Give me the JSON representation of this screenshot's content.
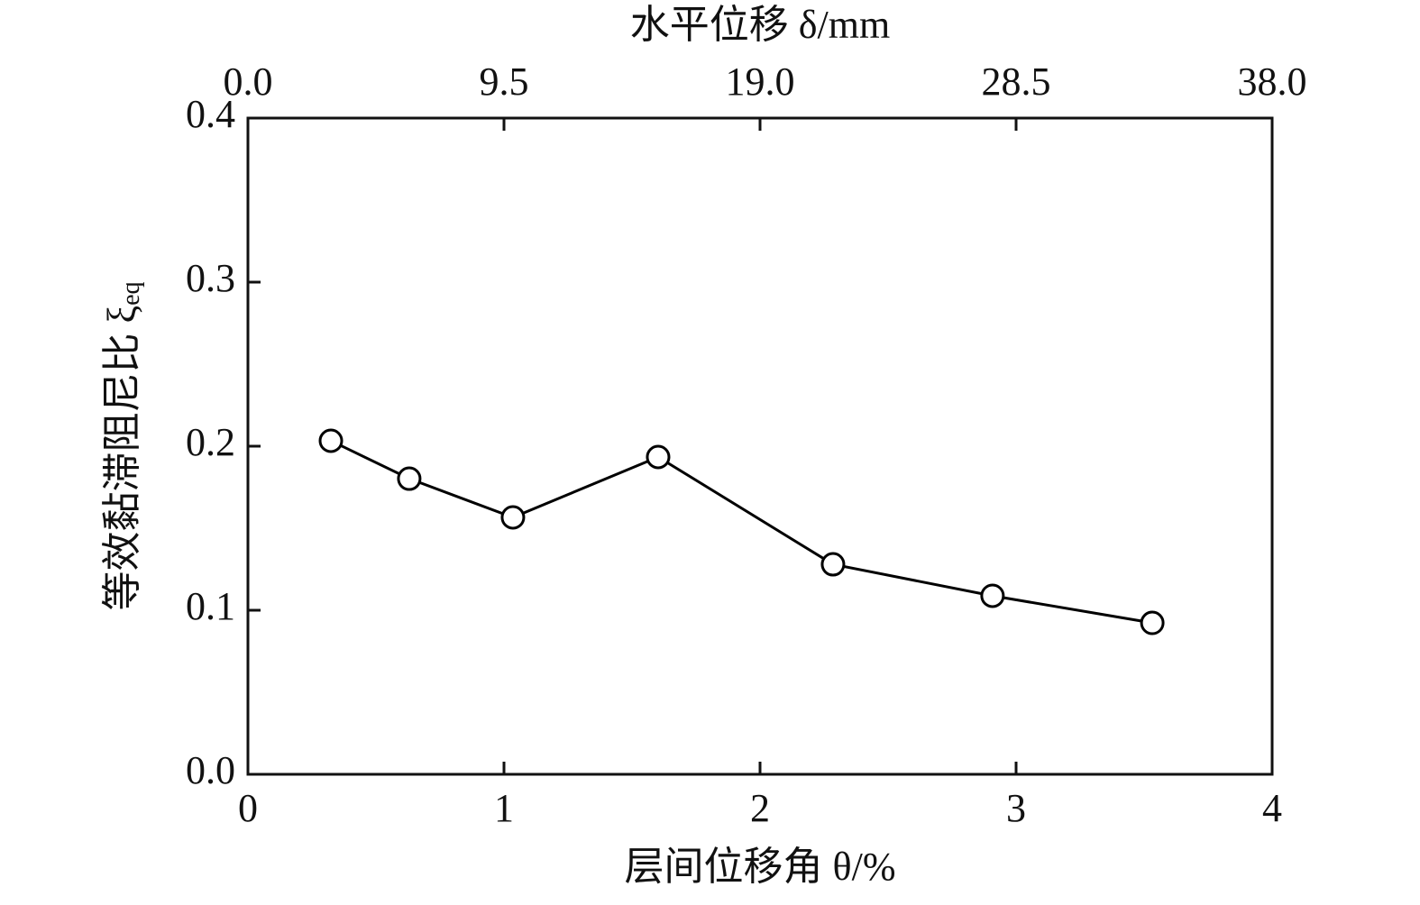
{
  "chart_data": {
    "type": "line",
    "xlabel": "层间位移角 θ/%",
    "x2label": "水平位移 δ/mm",
    "ylabel": "等效黏滞阻尼比 ξ",
    "ylabel_subscript": "eq",
    "x": [
      0.324,
      0.63,
      1.035,
      1.602,
      2.285,
      2.908,
      3.532
    ],
    "series": [
      {
        "color": "#000000",
        "marker": "open-circle",
        "values": [
          0.2033,
          0.1802,
          0.1566,
          0.1934,
          0.128,
          0.1088,
          0.0923
        ]
      }
    ],
    "xlim": [
      0,
      4
    ],
    "xticks": [
      0,
      1,
      2,
      3,
      4
    ],
    "x2lim": [
      0,
      38
    ],
    "x2ticks": [
      {
        "value": 0,
        "label": "0.0"
      },
      9.5,
      {
        "value": 19,
        "label": "19.0"
      },
      28.5,
      {
        "value": 38,
        "label": "38.0"
      }
    ],
    "ylim": [
      0,
      0.4
    ],
    "yticks": [
      {
        "value": 0,
        "label": "0.0"
      },
      0.1,
      0.2,
      0.3,
      0.4
    ],
    "grid": false
  }
}
